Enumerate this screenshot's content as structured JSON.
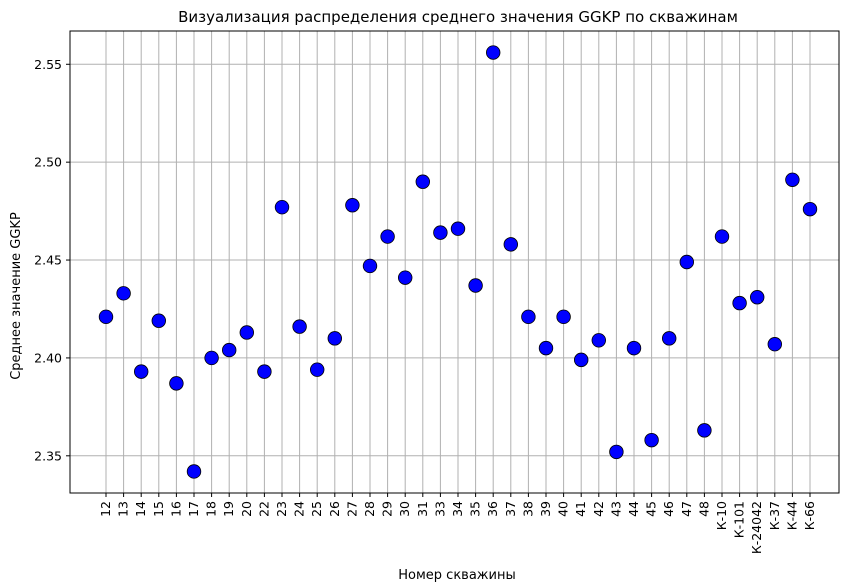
{
  "chart_data": {
    "type": "scatter",
    "title": "Визуализация распределения среднего значения GGKP по скважинам",
    "xlabel": "Номер скважины",
    "ylabel": "Среднее значение GGKP",
    "ylim": [
      2.331,
      2.567
    ],
    "yticks": [
      2.35,
      2.4,
      2.45,
      2.5,
      2.55
    ],
    "ytick_labels": [
      "2.35",
      "2.40",
      "2.45",
      "2.50",
      "2.55"
    ],
    "grid": true,
    "marker_color": "#0000ff",
    "marker_edge_color": "#000000",
    "categories": [
      "12",
      "13",
      "14",
      "15",
      "16",
      "17",
      "18",
      "19",
      "20",
      "22",
      "23",
      "24",
      "25",
      "26",
      "27",
      "28",
      "29",
      "30",
      "31",
      "33",
      "34",
      "35",
      "36",
      "37",
      "38",
      "39",
      "40",
      "41",
      "42",
      "43",
      "44",
      "45",
      "46",
      "47",
      "48",
      "К-10",
      "К-101",
      "К-24042",
      "К-37",
      "К-44",
      "К-66"
    ],
    "values": [
      2.421,
      2.433,
      2.393,
      2.419,
      2.387,
      2.342,
      2.4,
      2.404,
      2.413,
      2.393,
      2.477,
      2.416,
      2.394,
      2.41,
      2.478,
      2.447,
      2.462,
      2.441,
      2.49,
      2.464,
      2.466,
      2.437,
      2.556,
      2.458,
      2.421,
      2.405,
      2.421,
      2.399,
      2.409,
      2.352,
      2.405,
      2.358,
      2.41,
      2.449,
      2.363,
      2.462,
      2.428,
      2.431,
      2.407,
      2.491,
      2.476
    ]
  }
}
